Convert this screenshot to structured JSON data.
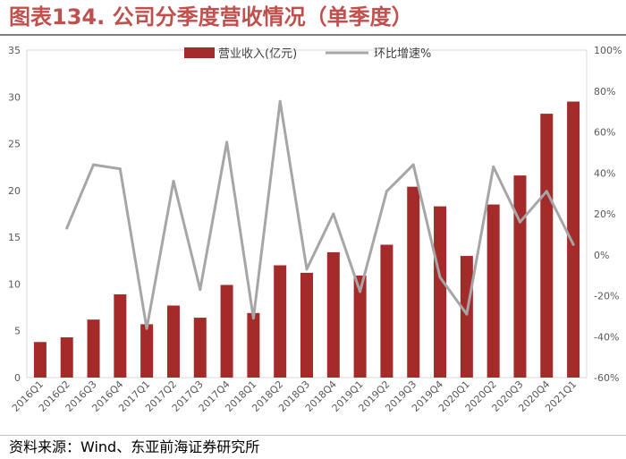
{
  "title": "图表134. 公司分季度营收情况（单季度）",
  "source": "资料来源：Wind、东亚前海证券研究所",
  "chart_data": {
    "type": "bar",
    "categories": [
      "2016Q1",
      "2016Q2",
      "2016Q3",
      "2016Q4",
      "2017Q1",
      "2017Q2",
      "2017Q3",
      "2017Q4",
      "2018Q1",
      "2018Q2",
      "2018Q3",
      "2018Q4",
      "2019Q1",
      "2019Q2",
      "2019Q3",
      "2019Q4",
      "2020Q1",
      "2020Q2",
      "2020Q3",
      "2020Q4",
      "2021Q1"
    ],
    "series": [
      {
        "name": "营业收入(亿元)",
        "type": "bar",
        "axis": "left",
        "color": "#a52a2a",
        "values": [
          3.8,
          4.3,
          6.2,
          8.9,
          5.7,
          7.7,
          6.4,
          9.9,
          6.9,
          12.0,
          11.2,
          13.4,
          10.9,
          14.2,
          20.4,
          18.3,
          13.0,
          18.5,
          21.6,
          28.2,
          29.5
        ]
      },
      {
        "name": "环比增速%",
        "type": "line",
        "axis": "right",
        "color": "#a6a6a6",
        "values": [
          null,
          13,
          44,
          42,
          -36,
          36,
          -17,
          55,
          -31,
          75,
          -7,
          20,
          -18,
          31,
          44,
          -11,
          -29,
          43,
          16,
          31,
          5
        ]
      }
    ],
    "left_axis": {
      "min": 0,
      "max": 35,
      "step": 5,
      "ticks": [
        "0",
        "5",
        "10",
        "15",
        "20",
        "25",
        "30",
        "35"
      ]
    },
    "right_axis": {
      "min": -60,
      "max": 100,
      "step": 20,
      "ticks": [
        "-60%",
        "-40%",
        "-20%",
        "0%",
        "20%",
        "40%",
        "60%",
        "80%",
        "100%"
      ]
    },
    "legend_position": "top-center",
    "grid": false
  }
}
